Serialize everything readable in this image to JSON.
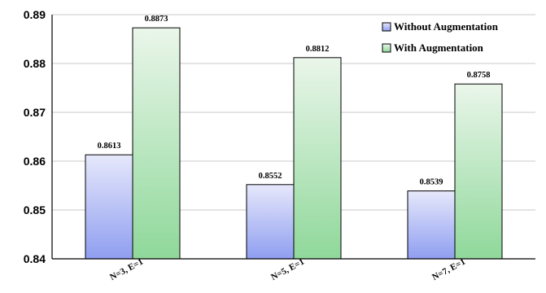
{
  "chart_data": {
    "type": "bar",
    "categories": [
      "N=3, E=1",
      "N=5, E=1",
      "N=7, E=1"
    ],
    "series": [
      {
        "name": "Without Augmentation",
        "values": [
          0.8613,
          0.8552,
          0.8539
        ],
        "labels": [
          "0.8613",
          "0.8552",
          "0.8539"
        ],
        "color_top": "#e6e8fb",
        "color_bottom": "#8f9ef0"
      },
      {
        "name": "With Augmentation",
        "values": [
          0.8873,
          0.8812,
          0.8758
        ],
        "labels": [
          "0.8873",
          "0.8812",
          "0.8758"
        ],
        "color_top": "#eaf6ea",
        "color_bottom": "#8fd89a"
      }
    ],
    "yticks": [
      "0.84",
      "0.85",
      "0.86",
      "0.87",
      "0.88",
      "0.89"
    ],
    "ylim": [
      0.84,
      0.89
    ],
    "grid": true,
    "legend_position": "top-right"
  }
}
